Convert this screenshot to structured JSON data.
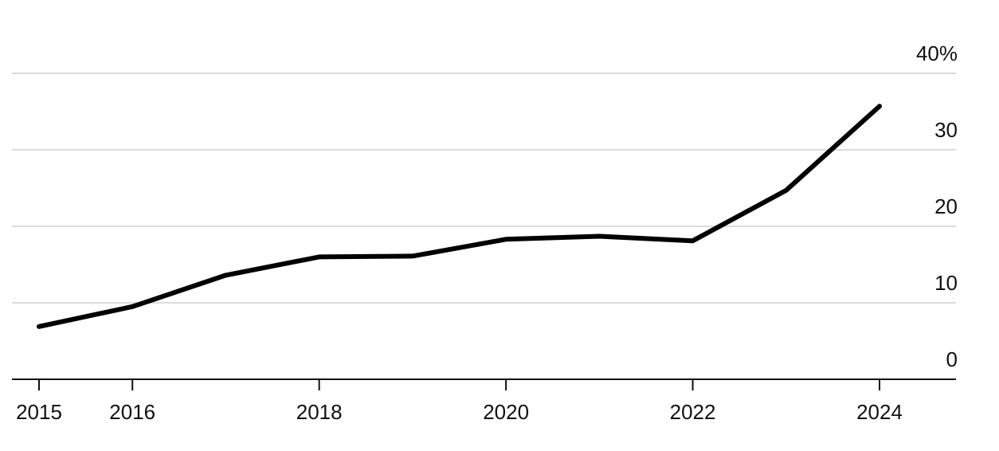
{
  "chart_data": {
    "type": "line",
    "title": "",
    "xlabel": "",
    "ylabel": "",
    "x": [
      2015,
      2016,
      2017,
      2018,
      2019,
      2020,
      2021,
      2022,
      2023,
      2024
    ],
    "series": [
      {
        "values": [
          6.9,
          9.5,
          13.6,
          16.0,
          16.1,
          18.3,
          18.7,
          18.1,
          24.7,
          35.7
        ],
        "color": "#000000"
      }
    ],
    "xlim": [
      2014.7,
      2025.0
    ],
    "ylim": [
      0,
      40
    ],
    "x_ticks": [
      2015,
      2016,
      2018,
      2020,
      2022,
      2024
    ],
    "x_tick_labels": [
      "2015",
      "2016",
      "2018",
      "2020",
      "2022",
      "2024"
    ],
    "y_ticks": [
      0,
      10,
      20,
      30,
      40
    ],
    "y_tick_labels": [
      "0",
      "10",
      "20",
      "30",
      "40%"
    ],
    "y_axis_position": "right",
    "grid": true
  }
}
